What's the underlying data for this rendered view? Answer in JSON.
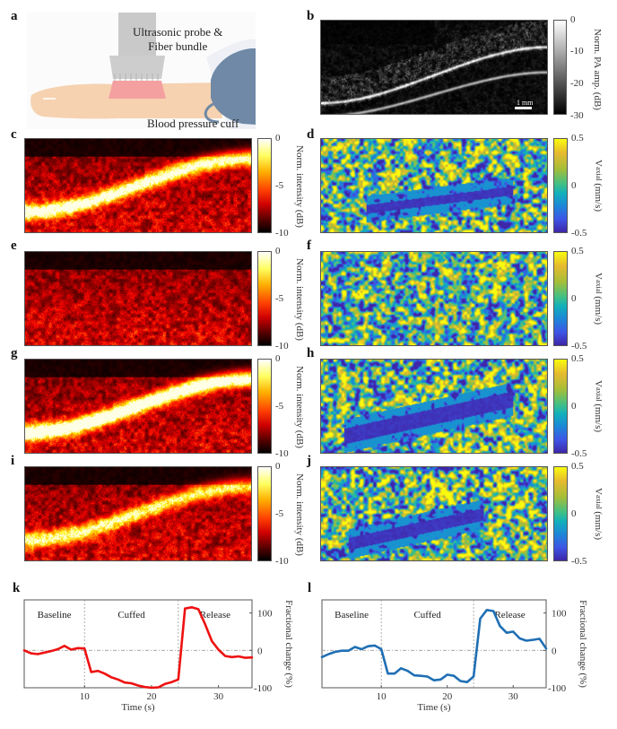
{
  "figure": {
    "panels": {
      "a": {
        "label": "a",
        "annotations": {
          "probe": [
            "Ultrasonic probe &",
            "Fiber bundle"
          ],
          "cuff": "Blood pressure cuff"
        }
      },
      "b": {
        "label": "b",
        "colorbar": {
          "label": "Norm. PA amp. (dB)",
          "ticks": [
            "0",
            "-10",
            "-20",
            "-30"
          ],
          "range": [
            -30,
            0
          ],
          "colormap": "gray"
        },
        "scale_bar": "1 mm"
      },
      "c": {
        "label": "c",
        "colorbar": {
          "label": "Norm. intensity (dB)",
          "ticks": [
            "0",
            "-5",
            "-10"
          ],
          "range": [
            -10,
            0
          ],
          "colormap": "hot"
        }
      },
      "d": {
        "label": "d",
        "colorbar": {
          "label_main": "V",
          "label_sub": "axial",
          "label_unit": " (mm/s)",
          "ticks": [
            "0.5",
            "0",
            "-0.5"
          ],
          "range": [
            -0.5,
            0.5
          ],
          "colormap": "parula"
        }
      },
      "e": {
        "label": "e",
        "colorbar": {
          "label": "Norm. intensity (dB)",
          "ticks": [
            "0",
            "-5",
            "-10"
          ]
        }
      },
      "f": {
        "label": "f",
        "colorbar": {
          "label_main": "V",
          "label_sub": "axial",
          "label_unit": " (mm/s)",
          "ticks": [
            "0.5",
            "0",
            "-0.5"
          ]
        }
      },
      "g": {
        "label": "g",
        "colorbar": {
          "label": "Norm. intensity (dB)",
          "ticks": [
            "0",
            "-5",
            "-10"
          ]
        }
      },
      "h": {
        "label": "h",
        "colorbar": {
          "label_main": "V",
          "label_sub": "axial",
          "label_unit": " (mm/s)",
          "ticks": [
            "0.5",
            "0",
            "-0.5"
          ]
        }
      },
      "i": {
        "label": "i",
        "colorbar": {
          "label": "Norm. intensity (dB)",
          "ticks": [
            "0",
            "-5",
            "-10"
          ]
        }
      },
      "j": {
        "label": "j",
        "colorbar": {
          "label_main": "V",
          "label_sub": "axial",
          "label_unit": " (mm/s)",
          "ticks": [
            "0.5",
            "0",
            "-0.5"
          ]
        }
      },
      "k": {
        "label": "k"
      },
      "l": {
        "label": "l"
      }
    },
    "colors": {
      "k_line": "#ee1111",
      "l_line": "#1f6fb4"
    }
  },
  "chart_data": [
    {
      "id": "k",
      "type": "line",
      "title": "",
      "xlabel": "Time (s)",
      "ylabel": "Fractional change (%)",
      "xlim": [
        1,
        35
      ],
      "ylim": [
        -100,
        135
      ],
      "xticks": [
        10,
        20,
        30
      ],
      "yticks": [
        -100,
        0,
        100
      ],
      "phase_dividers": [
        10,
        24
      ],
      "phase_labels": [
        "Baseline",
        "Cuffed",
        "Release"
      ],
      "zero_line": true,
      "series": [
        {
          "name": "k",
          "x": [
            1,
            2,
            3,
            4,
            5,
            6,
            7,
            8,
            9,
            10,
            11,
            12,
            13,
            14,
            15,
            16,
            17,
            18,
            19,
            20,
            21,
            22,
            23,
            24,
            25,
            26,
            27,
            28,
            29,
            30,
            31,
            32,
            33,
            34,
            35
          ],
          "y": [
            0,
            -8,
            -10,
            -6,
            -2,
            3,
            12,
            2,
            6,
            5,
            -58,
            -55,
            -62,
            -72,
            -78,
            -86,
            -88,
            -94,
            -98,
            -100,
            -99,
            -90,
            -85,
            -78,
            112,
            115,
            110,
            70,
            25,
            2,
            -15,
            -18,
            -16,
            -20,
            -19
          ]
        }
      ]
    },
    {
      "id": "l",
      "type": "line",
      "title": "",
      "xlabel": "Time (s)",
      "ylabel": "Fractional change (%)",
      "xlim": [
        1,
        35
      ],
      "ylim": [
        -100,
        135
      ],
      "xticks": [
        10,
        20,
        30
      ],
      "yticks": [
        -100,
        0,
        100
      ],
      "phase_dividers": [
        10,
        24
      ],
      "phase_labels": [
        "Baseline",
        "Cuffed",
        "Release"
      ],
      "zero_line": true,
      "series": [
        {
          "name": "l",
          "x": [
            1,
            2,
            3,
            4,
            5,
            6,
            7,
            8,
            9,
            10,
            11,
            12,
            13,
            14,
            15,
            16,
            17,
            18,
            19,
            20,
            21,
            22,
            23,
            24,
            25,
            26,
            27,
            28,
            29,
            30,
            31,
            32,
            33,
            34,
            35
          ],
          "y": [
            -18,
            -10,
            -4,
            -1,
            -1,
            9,
            3,
            11,
            13,
            3,
            -62,
            -62,
            -48,
            -55,
            -67,
            -68,
            -70,
            -80,
            -78,
            -65,
            -68,
            -82,
            -85,
            -70,
            85,
            108,
            105,
            65,
            47,
            50,
            32,
            26,
            28,
            31,
            5
          ]
        }
      ]
    }
  ]
}
